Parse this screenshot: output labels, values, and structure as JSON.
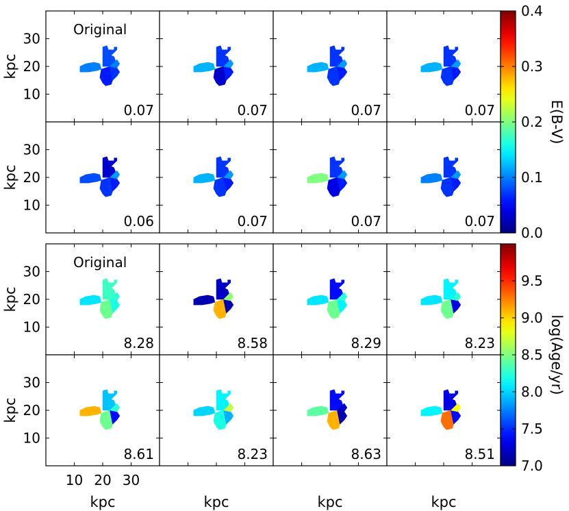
{
  "chart_data": {
    "type": "heatmap",
    "description_units": "kpc",
    "axes": {
      "xlabel": "kpc",
      "ylabel": "kpc",
      "x_ticks": [
        "10",
        "20",
        "30"
      ],
      "y_ticks": [
        "10",
        "20",
        "30"
      ],
      "x_tick_values": [
        10,
        20,
        30
      ],
      "y_tick_values": [
        10,
        20,
        30
      ],
      "xlim": [
        0,
        40
      ],
      "ylim": [
        0,
        40
      ]
    },
    "panels_ebv": {
      "colorbar_label": "E(B-V)",
      "colorbar_ticks": [
        "0.0",
        "0.1",
        "0.2",
        "0.3",
        "0.4"
      ],
      "colorbar_tick_values": [
        0.0,
        0.1,
        0.2,
        0.3,
        0.4
      ],
      "range": [
        0.0,
        0.4
      ],
      "original_label": "Original",
      "values": [
        "0.07",
        "0.07",
        "0.07",
        "0.07",
        "0.06",
        "0.07",
        "0.07",
        "0.07"
      ],
      "region_values": [
        [
          0.1,
          0.08,
          0.06,
          0.07,
          0.1
        ],
        [
          0.12,
          0.07,
          0.03,
          0.06,
          0.11
        ],
        [
          0.12,
          0.07,
          0.07,
          0.06,
          0.11
        ],
        [
          0.12,
          0.07,
          0.07,
          0.06,
          0.11
        ],
        [
          0.08,
          0.03,
          0.07,
          0.06,
          0.11
        ],
        [
          0.12,
          0.07,
          0.07,
          0.06,
          0.11
        ],
        [
          0.2,
          0.07,
          0.04,
          0.06,
          0.11
        ],
        [
          0.1,
          0.07,
          0.07,
          0.06,
          0.11
        ]
      ]
    },
    "panels_age": {
      "colorbar_label": "log(Age/yr)",
      "colorbar_ticks": [
        "7.0",
        "7.5",
        "8.0",
        "8.5",
        "9.0",
        "9.5"
      ],
      "colorbar_tick_values": [
        7.0,
        7.5,
        8.0,
        8.5,
        9.0,
        9.5
      ],
      "range": [
        7.0,
        10.0
      ],
      "original_label": "Original",
      "values": [
        "8.28",
        "8.58",
        "8.29",
        "8.23",
        "8.61",
        "8.23",
        "8.63",
        "8.51"
      ],
      "region_values": [
        [
          8.05,
          8.3,
          8.45,
          8.2,
          8.25
        ],
        [
          7.15,
          7.2,
          9.1,
          7.15,
          8.55
        ],
        [
          8.05,
          7.4,
          8.45,
          8.1,
          8.25
        ],
        [
          8.05,
          8.1,
          8.45,
          7.3,
          8.25
        ],
        [
          9.1,
          7.95,
          8.45,
          7.4,
          8.25
        ],
        [
          8.0,
          8.1,
          8.2,
          7.9,
          8.7
        ],
        [
          8.4,
          7.4,
          9.1,
          7.15,
          7.2
        ],
        [
          8.1,
          7.3,
          9.3,
          7.4,
          8.85
        ]
      ]
    }
  }
}
